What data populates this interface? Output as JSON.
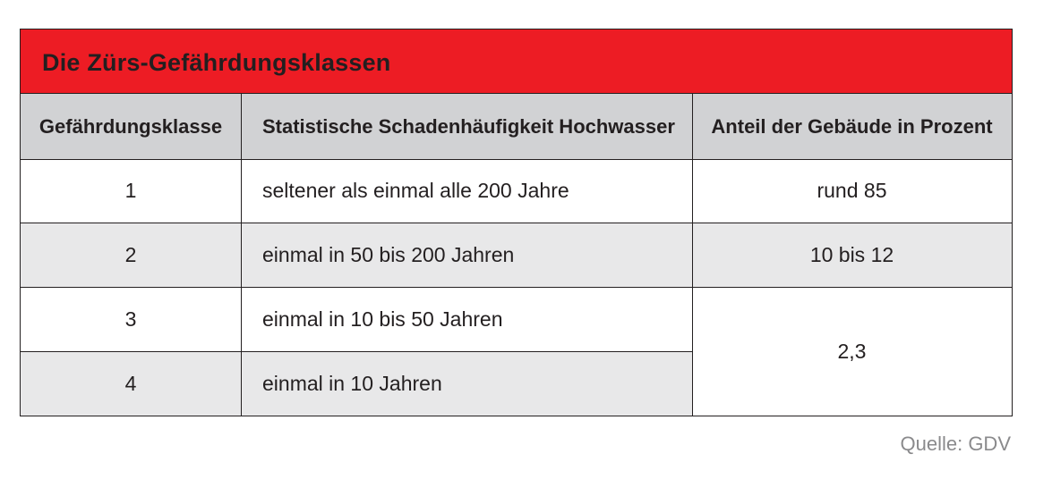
{
  "title": "Die Zürs-Gefährdungsklassen",
  "colors": {
    "title_bg": "#ed1c24",
    "header_bg": "#d1d2d4",
    "stripe_bg": "#e8e8e9",
    "text": "#231f20",
    "source_text": "#8a8a8c"
  },
  "headers": [
    "Gefährdungsklasse",
    "Statistische Schadenhäufigkeit Hochwasser",
    "Anteil der Gebäude in Prozent"
  ],
  "rows": [
    {
      "klasse": "1",
      "haeufigkeit": "seltener als einmal alle 200 Jahre",
      "anteil": "rund 85"
    },
    {
      "klasse": "2",
      "haeufigkeit": "einmal in 50 bis 200 Jahren",
      "anteil": "10 bis 12"
    },
    {
      "klasse": "3",
      "haeufigkeit": "einmal in 10 bis 50 Jahren",
      "anteil": "2,3"
    },
    {
      "klasse": "4",
      "haeufigkeit": "einmal in 10 Jahren",
      "anteil": ""
    }
  ],
  "merged_anteil_rows_3_4": "2,3",
  "source": "Quelle: GDV"
}
